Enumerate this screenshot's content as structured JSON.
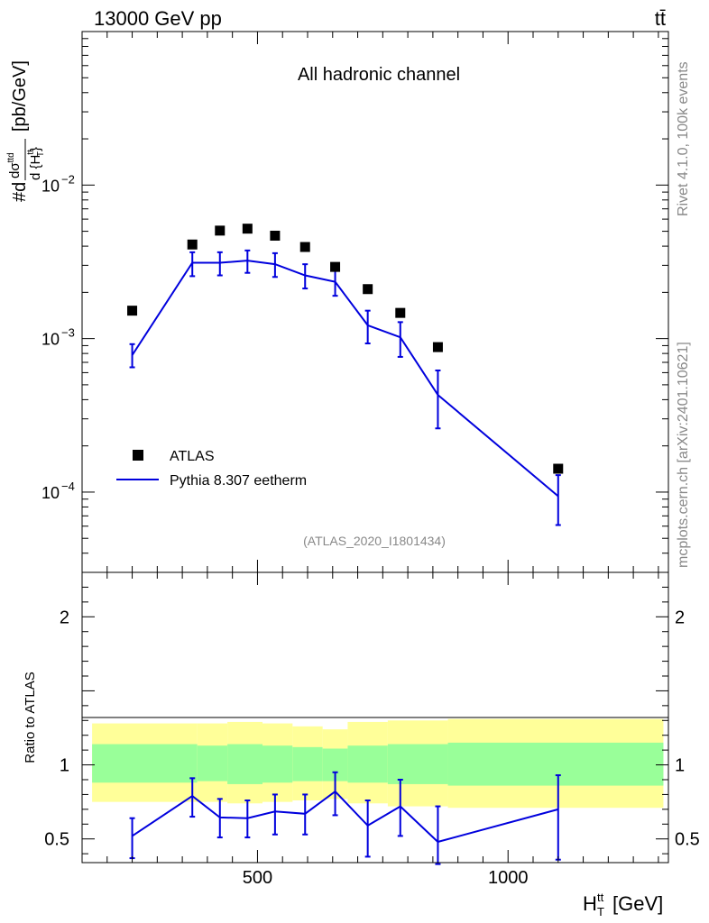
{
  "header": {
    "left": "13000 GeV pp",
    "right": "tt̄"
  },
  "side_labels": {
    "rivet": "Rivet 4.1.0,  100k events",
    "mcplots": "mcplots.cern.ch [arXiv:2401.10621]"
  },
  "colors": {
    "data_marker": "#000000",
    "mc_line": "#0000dd",
    "band_inner": "#99ff99",
    "band_outer": "#ffff99"
  },
  "chart_data": [
    {
      "type": "line",
      "panel": "main",
      "title": "All hadronic channel",
      "analysis_label": "(ATLAS_2020_I1801434)",
      "xlabel": "H_T^tt [GeV]",
      "ylabel": "#d dσ^{tt}/d{H_T^tt} [pb/GeV]",
      "yscale": "log",
      "xlim": [
        150,
        1320
      ],
      "ylim": [
        3e-05,
        0.1
      ],
      "y_ticks": [
        {
          "value": 0.01,
          "label": "10^-2"
        },
        {
          "value": 0.001,
          "label": "10^-3"
        },
        {
          "value": 0.0001,
          "label": "10^-4"
        }
      ],
      "legend": {
        "position": "bottom-left",
        "entries": [
          {
            "label": "ATLAS",
            "kind": "marker"
          },
          {
            "label": "Pythia 8.307 eetherm",
            "kind": "line"
          }
        ]
      },
      "series": [
        {
          "name": "ATLAS",
          "x": [
            250,
            370,
            425,
            480,
            535,
            595,
            655,
            720,
            785,
            860,
            1100
          ],
          "values": [
            0.00152,
            0.0041,
            0.00505,
            0.0052,
            0.00468,
            0.00395,
            0.00293,
            0.0021,
            0.00147,
            0.00088,
            0.000142
          ]
        },
        {
          "name": "Pythia 8.307 eetherm",
          "x": [
            250,
            370,
            425,
            480,
            535,
            595,
            655,
            720,
            785,
            860,
            1100
          ],
          "values": [
            0.00078,
            0.00312,
            0.00312,
            0.00322,
            0.00305,
            0.00258,
            0.00234,
            0.00122,
            0.00102,
            0.00043,
            9.4e-05
          ],
          "err_low": [
            0.00065,
            0.00255,
            0.00258,
            0.00268,
            0.00252,
            0.00212,
            0.0019,
            0.00093,
            0.00076,
            0.00026,
            6.1e-05
          ],
          "err_high": [
            0.00092,
            0.00365,
            0.00365,
            0.00375,
            0.0036,
            0.00305,
            0.00282,
            0.00152,
            0.00128,
            0.00062,
            0.000129
          ]
        }
      ]
    },
    {
      "type": "line",
      "panel": "ratio",
      "xlabel": "H_T^tt [GeV]",
      "ylabel": "Ratio to ATLAS",
      "xlim": [
        150,
        1320
      ],
      "ylim": [
        0.34,
        2.3
      ],
      "x_ticks": [
        500,
        1000
      ],
      "y_ticks": [
        0.5,
        1,
        2
      ],
      "band_edges": [
        170,
        380,
        440,
        510,
        570,
        630,
        680,
        760,
        880,
        1310
      ],
      "band_outer_low": [
        0.75,
        0.75,
        0.74,
        0.75,
        0.76,
        0.77,
        0.74,
        0.72,
        0.71
      ],
      "band_outer_high": [
        1.28,
        1.28,
        1.29,
        1.28,
        1.26,
        1.24,
        1.29,
        1.3,
        1.31
      ],
      "band_inner_low": [
        0.88,
        0.89,
        0.87,
        0.88,
        0.89,
        0.89,
        0.88,
        0.87,
        0.86
      ],
      "band_inner_high": [
        1.14,
        1.13,
        1.14,
        1.13,
        1.12,
        1.11,
        1.13,
        1.14,
        1.15
      ],
      "series": [
        {
          "name": "Pythia 8.307 eetherm / ATLAS",
          "x": [
            250,
            370,
            425,
            480,
            535,
            595,
            655,
            720,
            785,
            860,
            1100
          ],
          "values": [
            0.52,
            0.79,
            0.645,
            0.64,
            0.685,
            0.67,
            0.82,
            0.59,
            0.72,
            0.48,
            0.7
          ],
          "err_low": [
            0.37,
            0.65,
            0.51,
            0.51,
            0.53,
            0.53,
            0.66,
            0.38,
            0.52,
            0.33,
            0.36
          ],
          "err_high": [
            0.64,
            0.91,
            0.77,
            0.76,
            0.8,
            0.8,
            0.95,
            0.76,
            0.9,
            0.72,
            0.93
          ]
        }
      ]
    }
  ]
}
